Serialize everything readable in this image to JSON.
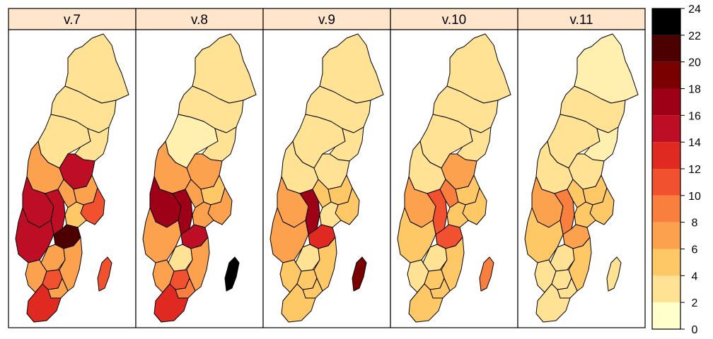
{
  "panels": [
    {
      "title": "v.7",
      "regions": {
        "norrbotten": 4,
        "vasterbotten": 3,
        "jamtland": 4,
        "vasternorrland": 3,
        "dalarna": 8,
        "gavleborg": 15,
        "varmland": 15,
        "orebro": 16,
        "vastmanland": 7,
        "uppsala": 7,
        "stockholm": 12,
        "sodermanland": 6,
        "vastra_gotaland": 15,
        "ostergotland": 22,
        "jonkoping": 7,
        "kalmar": 8,
        "kronoberg": 11,
        "halland": 8,
        "blekinge": 8,
        "skane": 13,
        "gotland": 12
      }
    },
    {
      "title": "v.8",
      "regions": {
        "norrbotten": 4,
        "vasterbotten": 3,
        "jamtland": 2,
        "vasternorrland": 3,
        "dalarna": 7,
        "gavleborg": 8,
        "varmland": 17,
        "orebro": 18,
        "vastmanland": 7,
        "uppsala": 6,
        "stockholm": 7,
        "sodermanland": 8,
        "vastra_gotaland": 8,
        "ostergotland": 16,
        "jonkoping": 4,
        "kalmar": 7,
        "kronoberg": 11,
        "halland": 8,
        "blekinge": 9,
        "skane": 13,
        "gotland": 24
      }
    },
    {
      "title": "v.9",
      "regions": {
        "norrbotten": 3,
        "vasterbotten": 4,
        "jamtland": 3,
        "vasternorrland": 4,
        "dalarna": 3,
        "gavleborg": 4,
        "varmland": 7,
        "orebro": 17,
        "vastmanland": 5,
        "uppsala": 5,
        "stockholm": 5,
        "sodermanland": 4,
        "vastra_gotaland": 7,
        "ostergotland": 13,
        "jonkoping": 3,
        "kalmar": 5,
        "kronoberg": 5,
        "halland": 6,
        "blekinge": 5,
        "skane": 6,
        "gotland": 19
      }
    },
    {
      "title": "v.10",
      "regions": {
        "norrbotten": 3,
        "vasterbotten": 3,
        "jamtland": 3,
        "vasternorrland": 3,
        "dalarna": 3,
        "gavleborg": 8,
        "varmland": 8,
        "orebro": 11,
        "vastmanland": 9,
        "uppsala": 5,
        "stockholm": 6,
        "sodermanland": 6,
        "vastra_gotaland": 6,
        "ostergotland": 11,
        "jonkoping": 3,
        "kalmar": 5,
        "kronoberg": 5,
        "halland": 4,
        "blekinge": 6,
        "skane": 5,
        "gotland": 10
      }
    },
    {
      "title": "v.11",
      "regions": {
        "norrbotten": 1,
        "vasterbotten": 3,
        "jamtland": 3,
        "vasternorrland": 2,
        "dalarna": 3,
        "gavleborg": 3,
        "varmland": 7,
        "orebro": 10,
        "vastmanland": 5,
        "uppsala": 5,
        "stockholm": 6,
        "sodermanland": 5,
        "vastra_gotaland": 6,
        "ostergotland": 7,
        "jonkoping": 3,
        "kalmar": 5,
        "kronoberg": 3,
        "halland": 3,
        "blekinge": 4,
        "skane": 4,
        "gotland": 3
      }
    }
  ],
  "legend": {
    "min": 0,
    "max": 24,
    "ticks": [
      "0",
      "2",
      "4",
      "6",
      "8",
      "10",
      "12",
      "14",
      "16",
      "18",
      "20",
      "22",
      "24"
    ],
    "colors": [
      "#FFFFCC",
      "#FFF0B0",
      "#FFE294",
      "#FFC866",
      "#FCA24E",
      "#F87F3D",
      "#F2512F",
      "#E02A21",
      "#BE0E26",
      "#9E0017",
      "#7A0000",
      "#4C0000",
      "#000000"
    ]
  },
  "style": {
    "strip_color": "#FFE5CC",
    "border": "#000000"
  }
}
